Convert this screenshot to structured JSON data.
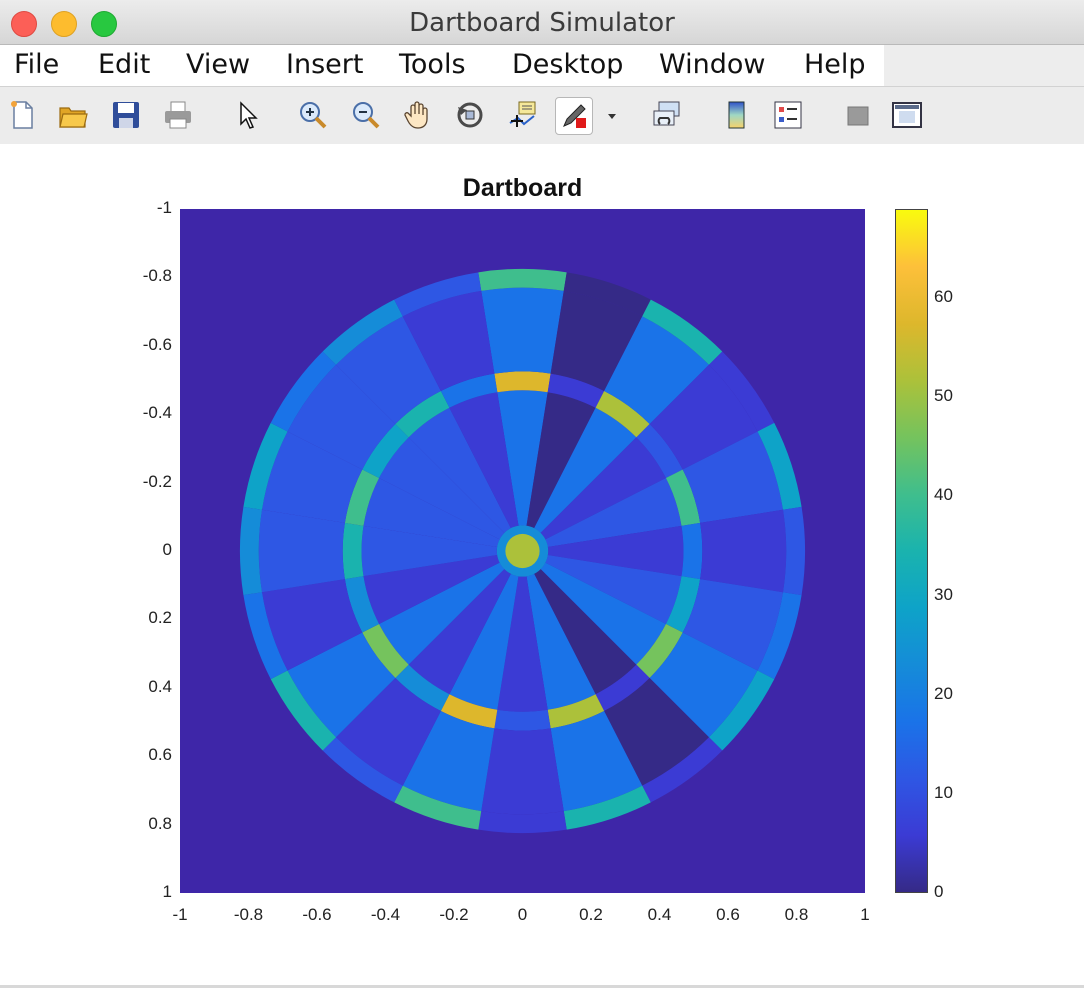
{
  "window": {
    "title": "Dartboard Simulator"
  },
  "menu": [
    "File",
    "Edit",
    "View",
    "Insert",
    "Tools",
    "Desktop",
    "Window",
    "Help"
  ],
  "toolbar_icons": [
    "new-figure-icon",
    "open-file-icon",
    "save-icon",
    "print-icon",
    "pointer-icon",
    "zoom-in-icon",
    "zoom-out-icon",
    "pan-hand-icon",
    "rotate-3d-icon",
    "data-cursor-icon",
    "brush-icon",
    "brush-dropdown-icon",
    "link-plot-icon",
    "colorbar-icon",
    "legend-icon",
    "hide-plot-tools-icon",
    "show-plot-tools-icon"
  ],
  "chart_data": {
    "type": "heatmap",
    "title": "Dartboard",
    "xlabel": "",
    "ylabel": "",
    "xlim": [
      -1,
      1
    ],
    "ylim": [
      -1,
      1
    ],
    "y_axis_reversed": true,
    "xticks": [
      "-1",
      "-0.8",
      "-0.6",
      "-0.4",
      "-0.2",
      "0",
      "0.2",
      "0.4",
      "0.6",
      "0.8",
      "1"
    ],
    "yticks": [
      "-1",
      "-0.8",
      "-0.6",
      "-0.4",
      "-0.2",
      "0",
      "0.2",
      "0.4",
      "0.6",
      "0.8",
      "1"
    ],
    "colorbar": {
      "ticks": [
        "0",
        "10",
        "20",
        "30",
        "40",
        "50",
        "60"
      ],
      "clim": [
        0,
        69
      ],
      "colormap": "parula"
    },
    "background_value": 0,
    "radii": {
      "bull": 0.05,
      "outer_bull": 0.075,
      "triple_inner": 0.47,
      "triple_outer": 0.525,
      "double_inner": 0.77,
      "double_outer": 0.825
    },
    "sectors_clockwise_from_top": [
      20,
      1,
      18,
      4,
      13,
      6,
      10,
      15,
      2,
      17,
      3,
      19,
      7,
      16,
      8,
      11,
      14,
      9,
      12,
      5
    ],
    "region_values": {
      "inner_bull": 50,
      "outer_bull": 25,
      "single": "sector",
      "triple": "3 x sector",
      "double": "2 x sector"
    }
  }
}
